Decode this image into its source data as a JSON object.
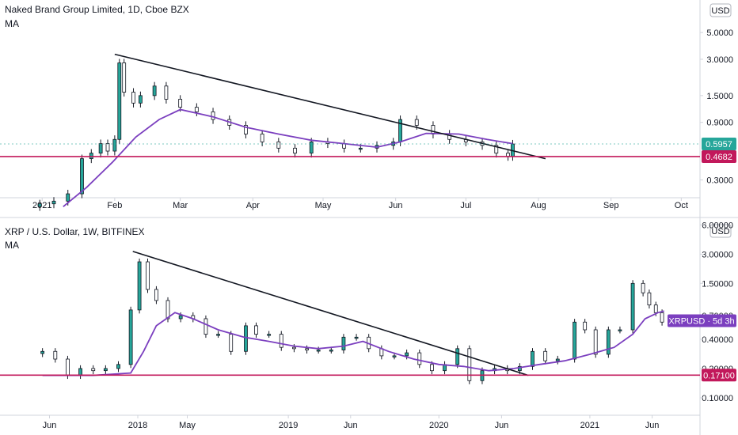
{
  "panes": [
    {
      "title": "Naked Brand Group Limited, 1D, Cboe BZX",
      "indicator": "MA",
      "currency": "USD",
      "y_ticks": [
        "5.0000",
        "3.0000",
        "1.5000",
        "0.9000",
        "0.3000"
      ],
      "x_ticks": [
        "2021",
        "Feb",
        "Mar",
        "Apr",
        "May",
        "Jun",
        "Jul",
        "Aug",
        "Sep",
        "Oct"
      ],
      "last_price": "0.5957",
      "level_label": "0.4682"
    },
    {
      "title": "XRP / U.S. Dollar, 1W, BITFINEX",
      "indicator": "MA",
      "currency": "USD",
      "y_ticks": [
        "6.00000",
        "3.00000",
        "1.50000",
        "0.70000",
        "0.40000",
        "0.20000",
        "0.10000"
      ],
      "x_ticks": [
        "Jun",
        "2018",
        "May",
        "2019",
        "Jun",
        "2020",
        "Jun",
        "2021",
        "Jun"
      ],
      "symbol_badge": "XRPUSD · 5d 3h",
      "level_label": "0.17100"
    }
  ],
  "chart_data": [
    {
      "type": "candlestick",
      "title": "Naked Brand Group Limited, 1D, Cboe BZX",
      "scale": "log",
      "ylim": [
        0.22,
        8.0
      ],
      "x_range": [
        "2020-12-28",
        "2021-10-05"
      ],
      "colors": {
        "up": "#26a69a",
        "down": "#131722",
        "ma": "#7b3fbf",
        "level": "#c2185b"
      },
      "closes": [
        [
          "2020-12-31",
          0.19
        ],
        [
          "2021-01-06",
          0.2
        ],
        [
          "2021-01-12",
          0.23
        ],
        [
          "2021-01-18",
          0.45
        ],
        [
          "2021-01-22",
          0.5
        ],
        [
          "2021-01-26",
          0.6
        ],
        [
          "2021-01-29",
          0.52
        ],
        [
          "2021-02-01",
          0.65
        ],
        [
          "2021-02-03",
          2.8
        ],
        [
          "2021-02-05",
          1.6
        ],
        [
          "2021-02-09",
          1.3
        ],
        [
          "2021-02-12",
          1.5
        ],
        [
          "2021-02-18",
          1.8
        ],
        [
          "2021-02-23",
          1.4
        ],
        [
          "2021-03-01",
          1.2
        ],
        [
          "2021-03-08",
          1.1
        ],
        [
          "2021-03-15",
          0.95
        ],
        [
          "2021-03-22",
          0.85
        ],
        [
          "2021-03-29",
          0.72
        ],
        [
          "2021-04-05",
          0.62
        ],
        [
          "2021-04-12",
          0.55
        ],
        [
          "2021-04-19",
          0.5
        ],
        [
          "2021-04-26",
          0.62
        ],
        [
          "2021-05-03",
          0.6
        ],
        [
          "2021-05-10",
          0.55
        ],
        [
          "2021-05-17",
          0.55
        ],
        [
          "2021-05-24",
          0.58
        ],
        [
          "2021-05-31",
          0.62
        ],
        [
          "2021-06-03",
          0.95
        ],
        [
          "2021-06-10",
          0.85
        ],
        [
          "2021-06-17",
          0.72
        ],
        [
          "2021-06-24",
          0.65
        ],
        [
          "2021-07-01",
          0.62
        ],
        [
          "2021-07-08",
          0.58
        ],
        [
          "2021-07-14",
          0.5
        ],
        [
          "2021-07-19",
          0.47
        ],
        [
          "2021-07-21",
          0.5957
        ]
      ],
      "ma": [
        [
          "2021-01-10",
          0.18
        ],
        [
          "2021-01-20",
          0.26
        ],
        [
          "2021-01-31",
          0.42
        ],
        [
          "2021-02-10",
          0.68
        ],
        [
          "2021-02-20",
          0.95
        ],
        [
          "2021-03-01",
          1.15
        ],
        [
          "2021-03-15",
          1.0
        ],
        [
          "2021-03-29",
          0.82
        ],
        [
          "2021-04-12",
          0.72
        ],
        [
          "2021-04-26",
          0.64
        ],
        [
          "2021-05-10",
          0.6
        ],
        [
          "2021-05-24",
          0.56
        ],
        [
          "2021-06-03",
          0.62
        ],
        [
          "2021-06-14",
          0.73
        ],
        [
          "2021-06-28",
          0.72
        ],
        [
          "2021-07-10",
          0.65
        ],
        [
          "2021-07-21",
          0.6
        ]
      ],
      "trendline": [
        [
          "2021-02-01",
          3.3
        ],
        [
          "2021-08-04",
          0.45
        ]
      ],
      "horizontal_level": 0.4682,
      "last_value": 0.5957
    },
    {
      "type": "candlestick",
      "title": "XRP / U.S. Dollar, 1W, BITFINEX",
      "scale": "log",
      "ylim": [
        0.07,
        6.5
      ],
      "x_range": [
        "2017-04-01",
        "2021-09-30"
      ],
      "colors": {
        "up": "#26a69a",
        "down": "#131722",
        "ma": "#7b3fbf",
        "level": "#c2185b"
      },
      "closes": [
        [
          "2017-05-15",
          0.3
        ],
        [
          "2017-06-15",
          0.25
        ],
        [
          "2017-07-15",
          0.17
        ],
        [
          "2017-08-15",
          0.2
        ],
        [
          "2017-09-15",
          0.19
        ],
        [
          "2017-10-15",
          0.2
        ],
        [
          "2017-11-15",
          0.22
        ],
        [
          "2017-12-15",
          0.8
        ],
        [
          "2018-01-05",
          2.5
        ],
        [
          "2018-01-25",
          1.3
        ],
        [
          "2018-02-15",
          1.0
        ],
        [
          "2018-03-15",
          0.65
        ],
        [
          "2018-04-15",
          0.7
        ],
        [
          "2018-05-15",
          0.65
        ],
        [
          "2018-06-15",
          0.45
        ],
        [
          "2018-07-15",
          0.45
        ],
        [
          "2018-08-15",
          0.3
        ],
        [
          "2018-09-20",
          0.55
        ],
        [
          "2018-10-15",
          0.45
        ],
        [
          "2018-11-15",
          0.45
        ],
        [
          "2018-12-15",
          0.33
        ],
        [
          "2019-01-15",
          0.32
        ],
        [
          "2019-02-15",
          0.31
        ],
        [
          "2019-03-15",
          0.31
        ],
        [
          "2019-04-15",
          0.31
        ],
        [
          "2019-05-15",
          0.42
        ],
        [
          "2019-06-15",
          0.42
        ],
        [
          "2019-07-15",
          0.32
        ],
        [
          "2019-08-15",
          0.27
        ],
        [
          "2019-09-15",
          0.27
        ],
        [
          "2019-10-15",
          0.29
        ],
        [
          "2019-11-15",
          0.22
        ],
        [
          "2019-12-15",
          0.19
        ],
        [
          "2020-01-15",
          0.22
        ],
        [
          "2020-02-15",
          0.32
        ],
        [
          "2020-03-15",
          0.15
        ],
        [
          "2020-04-15",
          0.19
        ],
        [
          "2020-05-15",
          0.2
        ],
        [
          "2020-06-15",
          0.19
        ],
        [
          "2020-07-15",
          0.21
        ],
        [
          "2020-08-15",
          0.3
        ],
        [
          "2020-09-15",
          0.24
        ],
        [
          "2020-10-15",
          0.25
        ],
        [
          "2020-11-25",
          0.6
        ],
        [
          "2020-12-20",
          0.5
        ],
        [
          "2021-01-15",
          0.28
        ],
        [
          "2021-02-15",
          0.5
        ],
        [
          "2021-03-15",
          0.5
        ],
        [
          "2021-04-15",
          1.5
        ],
        [
          "2021-05-10",
          1.2
        ],
        [
          "2021-05-25",
          0.9
        ],
        [
          "2021-06-10",
          0.75
        ],
        [
          "2021-06-25",
          0.6
        ]
      ],
      "ma": [
        [
          "2017-05-15",
          0.17
        ],
        [
          "2017-09-15",
          0.17
        ],
        [
          "2017-12-15",
          0.18
        ],
        [
          "2018-01-15",
          0.3
        ],
        [
          "2018-02-15",
          0.55
        ],
        [
          "2018-04-01",
          0.75
        ],
        [
          "2018-05-15",
          0.65
        ],
        [
          "2018-07-15",
          0.5
        ],
        [
          "2018-09-15",
          0.42
        ],
        [
          "2018-11-15",
          0.38
        ],
        [
          "2019-01-15",
          0.34
        ],
        [
          "2019-03-15",
          0.32
        ],
        [
          "2019-05-15",
          0.34
        ],
        [
          "2019-07-01",
          0.38
        ],
        [
          "2019-09-01",
          0.3
        ],
        [
          "2019-11-01",
          0.25
        ],
        [
          "2020-01-01",
          0.22
        ],
        [
          "2020-03-01",
          0.21
        ],
        [
          "2020-05-01",
          0.19
        ],
        [
          "2020-07-01",
          0.2
        ],
        [
          "2020-09-01",
          0.22
        ],
        [
          "2020-11-01",
          0.24
        ],
        [
          "2021-01-01",
          0.28
        ],
        [
          "2021-03-01",
          0.33
        ],
        [
          "2021-04-15",
          0.45
        ],
        [
          "2021-05-15",
          0.65
        ],
        [
          "2021-06-15",
          0.75
        ],
        [
          "2021-06-30",
          0.78
        ]
      ],
      "trendline": [
        [
          "2017-12-20",
          3.2
        ],
        [
          "2020-08-05",
          0.17
        ]
      ],
      "horizontal_level": 0.171
    }
  ]
}
